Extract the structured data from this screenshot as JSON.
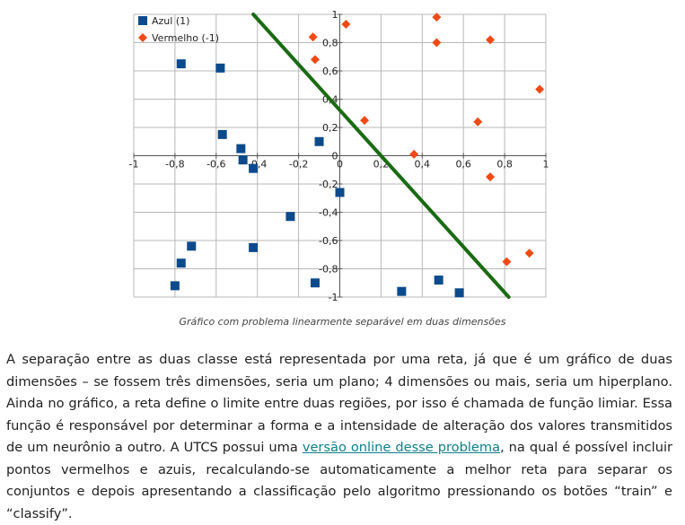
{
  "caption": "Gráfico com problema linearmente separável em duas dimensões",
  "paragraph": {
    "before_link": "A separação entre as duas classe está representada por uma reta, já que é um gráfico de duas dimensões – se fossem três dimensões, seria um plano; 4 dimensões ou mais, seria um hiperplano. Ainda no gráfico, a reta define o limite entre duas regiões, por isso é chamada de função limiar. Essa função é responsável por determinar a forma e a intensidade de alteração dos valores transmitidos de um neurônio a outro. A UTCS possui uma ",
    "link_text": "versão online desse problema",
    "after_link": ", na qual é possível incluir pontos vermelhos e azuis, recalculando-se automaticamente a melhor reta para separar os conjuntos e depois apresentando a classificação pelo algoritmo pressionando os botões “train” e “classify”."
  },
  "colors": {
    "blue": "#0c4a8c",
    "red": "#ef4a16",
    "line": "#1a6b12",
    "grid": "#b8b8b8",
    "link": "#0f7f89"
  },
  "chart_data": {
    "type": "scatter",
    "xlim": [
      -1,
      1
    ],
    "ylim": [
      -1,
      1
    ],
    "grid": true,
    "legend_position": "top-left",
    "x_ticks": [
      "-1",
      "-0,8",
      "-0,6",
      "-0,4",
      "-0,2",
      "0",
      "0,2",
      "0,4",
      "0,6",
      "0,8",
      "1"
    ],
    "y_ticks": [
      "1",
      "0,8",
      "0,6",
      "0,4",
      "0,2",
      "0",
      "-0,2",
      "-0,4",
      "-0,6",
      "-0,8",
      "-1"
    ],
    "series": [
      {
        "name": "Azul (1)",
        "marker": "square",
        "points": [
          [
            -0.77,
            0.65
          ],
          [
            -0.58,
            0.62
          ],
          [
            -0.57,
            0.15
          ],
          [
            -0.48,
            0.05
          ],
          [
            -0.47,
            -0.03
          ],
          [
            -0.42,
            -0.09
          ],
          [
            -0.1,
            0.1
          ],
          [
            0.0,
            -0.26
          ],
          [
            -0.24,
            -0.43
          ],
          [
            -0.42,
            -0.65
          ],
          [
            -0.72,
            -0.64
          ],
          [
            -0.77,
            -0.76
          ],
          [
            -0.8,
            -0.92
          ],
          [
            -0.12,
            -0.9
          ],
          [
            0.3,
            -0.96
          ],
          [
            0.48,
            -0.88
          ],
          [
            0.58,
            -0.97
          ]
        ]
      },
      {
        "name": "Vermelho (-1)",
        "marker": "diamond",
        "points": [
          [
            -0.13,
            0.84
          ],
          [
            -0.12,
            0.68
          ],
          [
            0.03,
            0.93
          ],
          [
            0.47,
            0.98
          ],
          [
            0.47,
            0.8
          ],
          [
            0.73,
            0.82
          ],
          [
            0.97,
            0.47
          ],
          [
            0.12,
            0.25
          ],
          [
            0.67,
            0.24
          ],
          [
            0.36,
            0.01
          ],
          [
            0.73,
            -0.15
          ],
          [
            0.81,
            -0.75
          ],
          [
            0.92,
            -0.69
          ]
        ]
      }
    ],
    "boundary": [
      [
        -0.42,
        1.0
      ],
      [
        0.82,
        -1.0
      ]
    ]
  }
}
